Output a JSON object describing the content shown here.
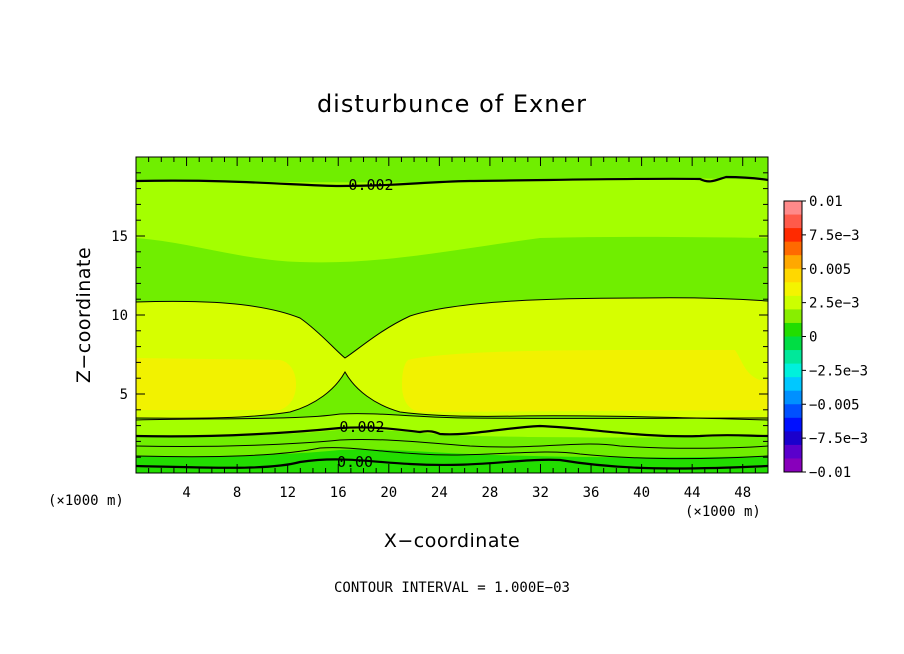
{
  "chart_data": {
    "type": "heatmap",
    "title": "disturbunce of Exner",
    "xlabel": "X−coordinate",
    "ylabel": "Z−coordinate",
    "x_unit": "(×1000 m)",
    "y_unit": "(×1000 m)",
    "xlim": [
      0,
      50
    ],
    "ylim": [
      0,
      20
    ],
    "x_ticks": [
      "4",
      "8",
      "12",
      "16",
      "20",
      "24",
      "28",
      "32",
      "36",
      "40",
      "44",
      "48"
    ],
    "y_ticks": [
      "5",
      "10",
      "15"
    ],
    "contour_interval_text": "CONTOUR INTERVAL = 1.000E−03",
    "contour_labels": [
      "0.002",
      "0.002",
      "0.00"
    ],
    "colorbar": {
      "labels": [
        "0.01",
        "7.5e−3",
        "0.005",
        "2.5e−3",
        "0",
        "−2.5e−3",
        "−0.005",
        "−7.5e−3",
        "−0.01"
      ],
      "colors": [
        "#ff8a8a",
        "#ff5a4a",
        "#ff2a00",
        "#ff6a00",
        "#ffa800",
        "#ffd800",
        "#f4f400",
        "#ccff00",
        "#88ee00",
        "#22dd00",
        "#00dd44",
        "#00e89a",
        "#00f0dc",
        "#00c8ff",
        "#0090ff",
        "#0050ff",
        "#0010ff",
        "#1a00cc",
        "#5a00cc",
        "#8800bb"
      ]
    },
    "bands": [
      {
        "level": 0.0035,
        "color": "#f2f200"
      },
      {
        "level": 0.0025,
        "color": "#d6ff00"
      },
      {
        "level": 0.0015,
        "color": "#a4ff00"
      },
      {
        "level": 0.0005,
        "color": "#70ee00"
      },
      {
        "level": -0.0005,
        "color": "#22dd00"
      }
    ]
  }
}
